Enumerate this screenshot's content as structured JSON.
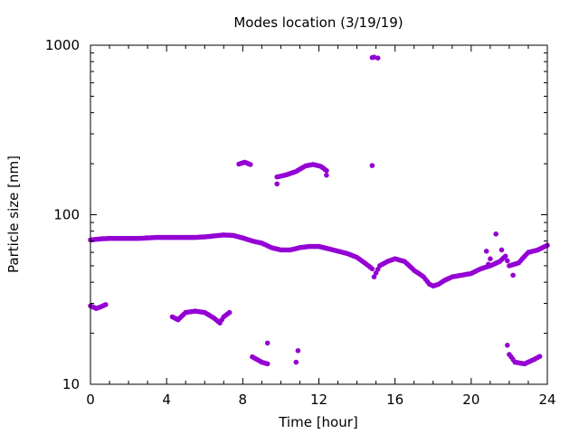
{
  "chart_data": {
    "type": "scatter",
    "title": "Modes location (3/19/19)",
    "xlabel": "Time [hour]",
    "ylabel": "Particle size [nm]",
    "xlim": [
      0,
      24
    ],
    "ylim": [
      10,
      1000
    ],
    "yscale": "log",
    "xticks": [
      0,
      4,
      8,
      12,
      16,
      20,
      24
    ],
    "xtick_labels": [
      "0",
      "4",
      "8",
      "12",
      "16",
      "20",
      "24"
    ],
    "yticks": [
      10,
      100,
      1000
    ],
    "ytick_labels": [
      "10",
      "100",
      "1000"
    ],
    "grid": false,
    "legend": "none",
    "marker_color": "#9400d3",
    "main_mode": [
      [
        0.0,
        71
      ],
      [
        0.5,
        72
      ],
      [
        1.0,
        72.5
      ],
      [
        1.5,
        72.5
      ],
      [
        2.0,
        72.5
      ],
      [
        2.5,
        72.5
      ],
      [
        3.0,
        73
      ],
      [
        3.5,
        73.5
      ],
      [
        4.0,
        73.5
      ],
      [
        4.5,
        73.5
      ],
      [
        5.0,
        73.5
      ],
      [
        5.5,
        73.5
      ],
      [
        6.0,
        74
      ],
      [
        6.5,
        75
      ],
      [
        7.0,
        76
      ],
      [
        7.5,
        75.5
      ],
      [
        8.0,
        73
      ],
      [
        8.5,
        70
      ],
      [
        9.0,
        68
      ],
      [
        9.5,
        64
      ],
      [
        10.0,
        62
      ],
      [
        10.5,
        62
      ],
      [
        11.0,
        64
      ],
      [
        11.5,
        65
      ],
      [
        12.0,
        65
      ],
      [
        12.5,
        63
      ],
      [
        13.0,
        61
      ],
      [
        13.5,
        59
      ],
      [
        14.0,
        56
      ],
      [
        14.5,
        51
      ],
      [
        14.8,
        48
      ]
    ],
    "evening_mode": [
      [
        14.9,
        43
      ],
      [
        15.2,
        50
      ],
      [
        15.6,
        53
      ],
      [
        16.0,
        55
      ],
      [
        16.5,
        53
      ],
      [
        17.0,
        47
      ],
      [
        17.5,
        43
      ],
      [
        17.8,
        39
      ],
      [
        18.0,
        38
      ],
      [
        18.3,
        39
      ],
      [
        18.6,
        41
      ],
      [
        19.0,
        43
      ],
      [
        19.5,
        44
      ],
      [
        20.0,
        45
      ],
      [
        20.5,
        48
      ],
      [
        21.0,
        50
      ],
      [
        21.5,
        53
      ],
      [
        21.8,
        57
      ],
      [
        22.0,
        50
      ],
      [
        22.5,
        52
      ],
      [
        23.0,
        60
      ],
      [
        23.5,
        62
      ],
      [
        24.0,
        66
      ]
    ],
    "small_mode_segments": [
      [
        [
          0.0,
          29
        ],
        [
          0.3,
          28
        ],
        [
          0.5,
          28.5
        ],
        [
          0.8,
          29.5
        ]
      ],
      [
        [
          4.3,
          25
        ],
        [
          4.6,
          24
        ],
        [
          5.0,
          26.5
        ],
        [
          5.5,
          27
        ],
        [
          6.0,
          26.5
        ],
        [
          6.5,
          24.5
        ],
        [
          6.8,
          23
        ],
        [
          7.0,
          25
        ],
        [
          7.3,
          26.5
        ]
      ],
      [
        [
          8.5,
          14.5
        ],
        [
          9.0,
          13.5
        ],
        [
          9.3,
          13.2
        ]
      ],
      [
        [
          21.9,
          17
        ],
        [
          22.0,
          15
        ],
        [
          22.3,
          13.5
        ],
        [
          22.8,
          13.2
        ],
        [
          23.3,
          14.0
        ],
        [
          23.6,
          14.6
        ]
      ]
    ],
    "large_mode_segments": [
      [
        [
          7.8,
          199
        ],
        [
          8.1,
          204
        ],
        [
          8.4,
          198
        ]
      ],
      [
        [
          9.8,
          167
        ],
        [
          10.3,
          172
        ],
        [
          10.8,
          180
        ],
        [
          11.3,
          194
        ],
        [
          11.7,
          198
        ],
        [
          12.1,
          193
        ],
        [
          12.4,
          182
        ]
      ]
    ],
    "isolated_points": [
      [
        9.3,
        17.5
      ],
      [
        10.8,
        13.5
      ],
      [
        10.9,
        15.8
      ],
      [
        9.8,
        152
      ],
      [
        12.4,
        171
      ],
      [
        14.8,
        195
      ],
      [
        14.8,
        845
      ],
      [
        14.9,
        850
      ],
      [
        15.1,
        840
      ],
      [
        20.8,
        61
      ],
      [
        20.9,
        51
      ],
      [
        21.0,
        55
      ],
      [
        21.3,
        77
      ],
      [
        21.6,
        62
      ],
      [
        22.2,
        44
      ]
    ]
  }
}
